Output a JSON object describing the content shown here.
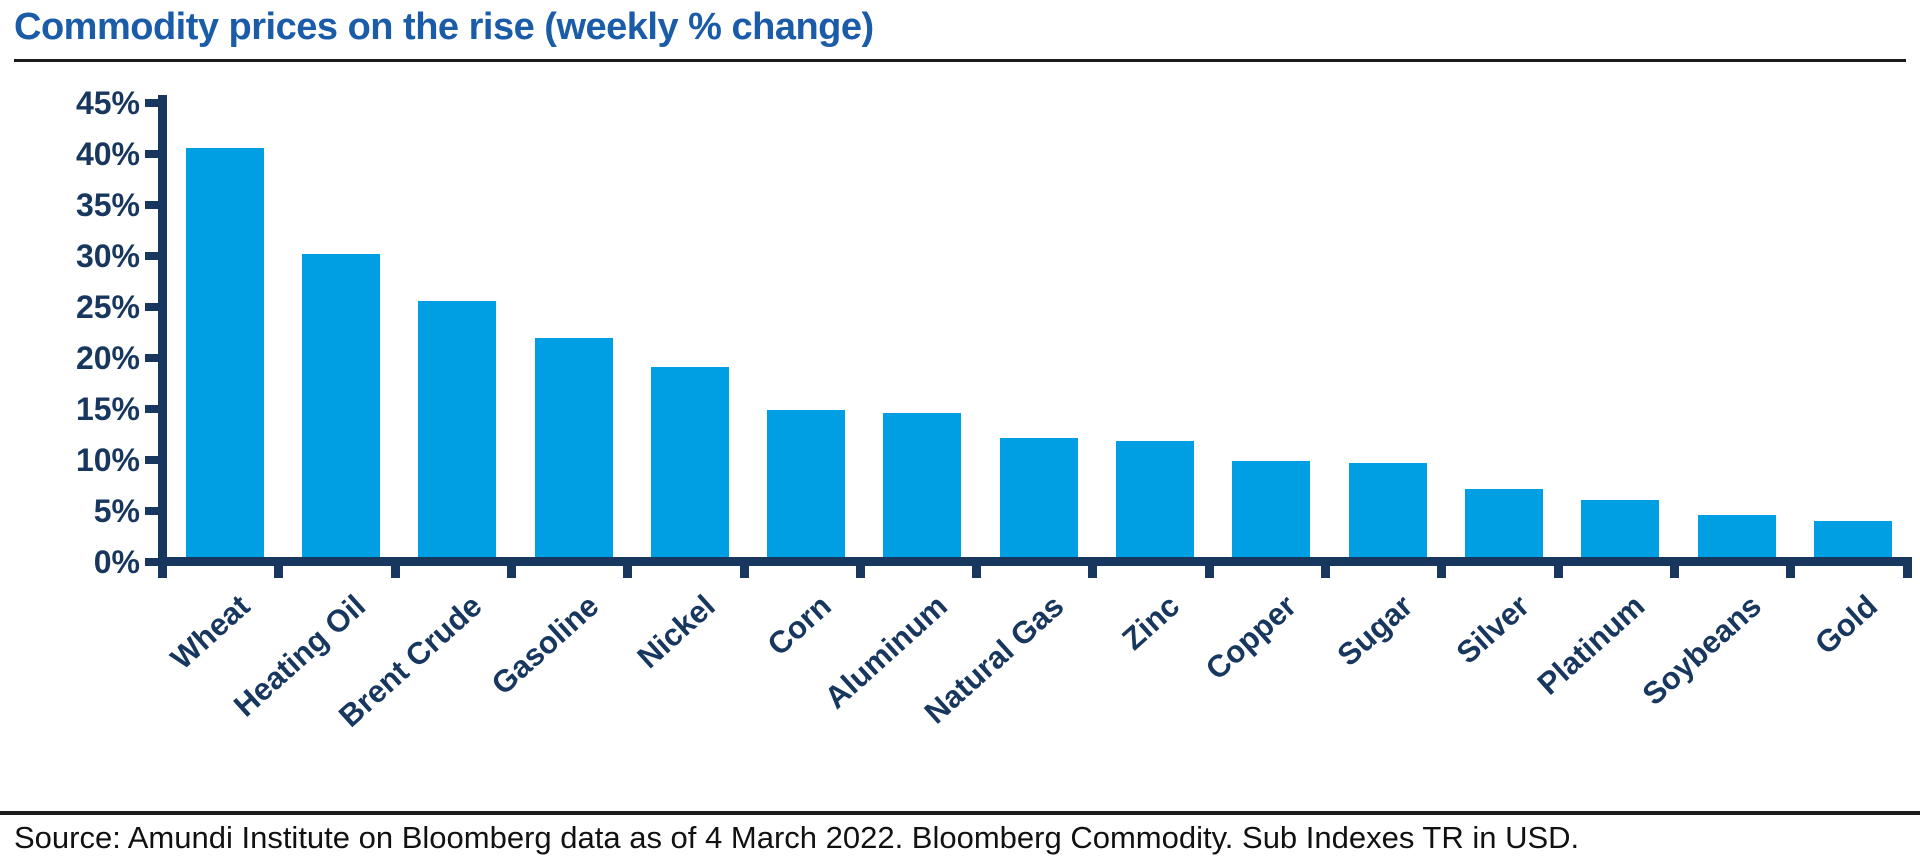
{
  "title": "Commodity prices on the rise (weekly % change)",
  "source": "Source: Amundi Institute on Bloomberg data as of 4 March 2022. Bloomberg Commodity. Sub Indexes TR in USD.",
  "colors": {
    "bar": "#009FE3",
    "axis": "#17375E",
    "title_text": "#1B5CA8",
    "rule": "#1b1b1b",
    "source_text": "#111111"
  },
  "chart_data": {
    "type": "bar",
    "title": "Commodity prices on the rise (weekly % change)",
    "categories": [
      "Wheat",
      "Heating Oil",
      "Brent Crude",
      "Gasoline",
      "Nickel",
      "Corn",
      "Aluminum",
      "Natural Gas",
      "Zinc",
      "Copper",
      "Sugar",
      "Silver",
      "Platinum",
      "Soybeans",
      "Gold"
    ],
    "values": [
      40.6,
      30.2,
      25.6,
      22.0,
      19.1,
      14.9,
      14.6,
      12.2,
      11.9,
      9.9,
      9.7,
      7.2,
      6.1,
      4.6,
      4.0
    ],
    "xlabel": "",
    "ylabel": "",
    "ylim": [
      0,
      45
    ],
    "ytick_step": 5,
    "ytick_labels": [
      "0%",
      "5%",
      "10%",
      "15%",
      "20%",
      "25%",
      "30%",
      "35%",
      "40%",
      "45%"
    ],
    "grid": false,
    "legend": false,
    "bar_color": "#009FE3"
  }
}
